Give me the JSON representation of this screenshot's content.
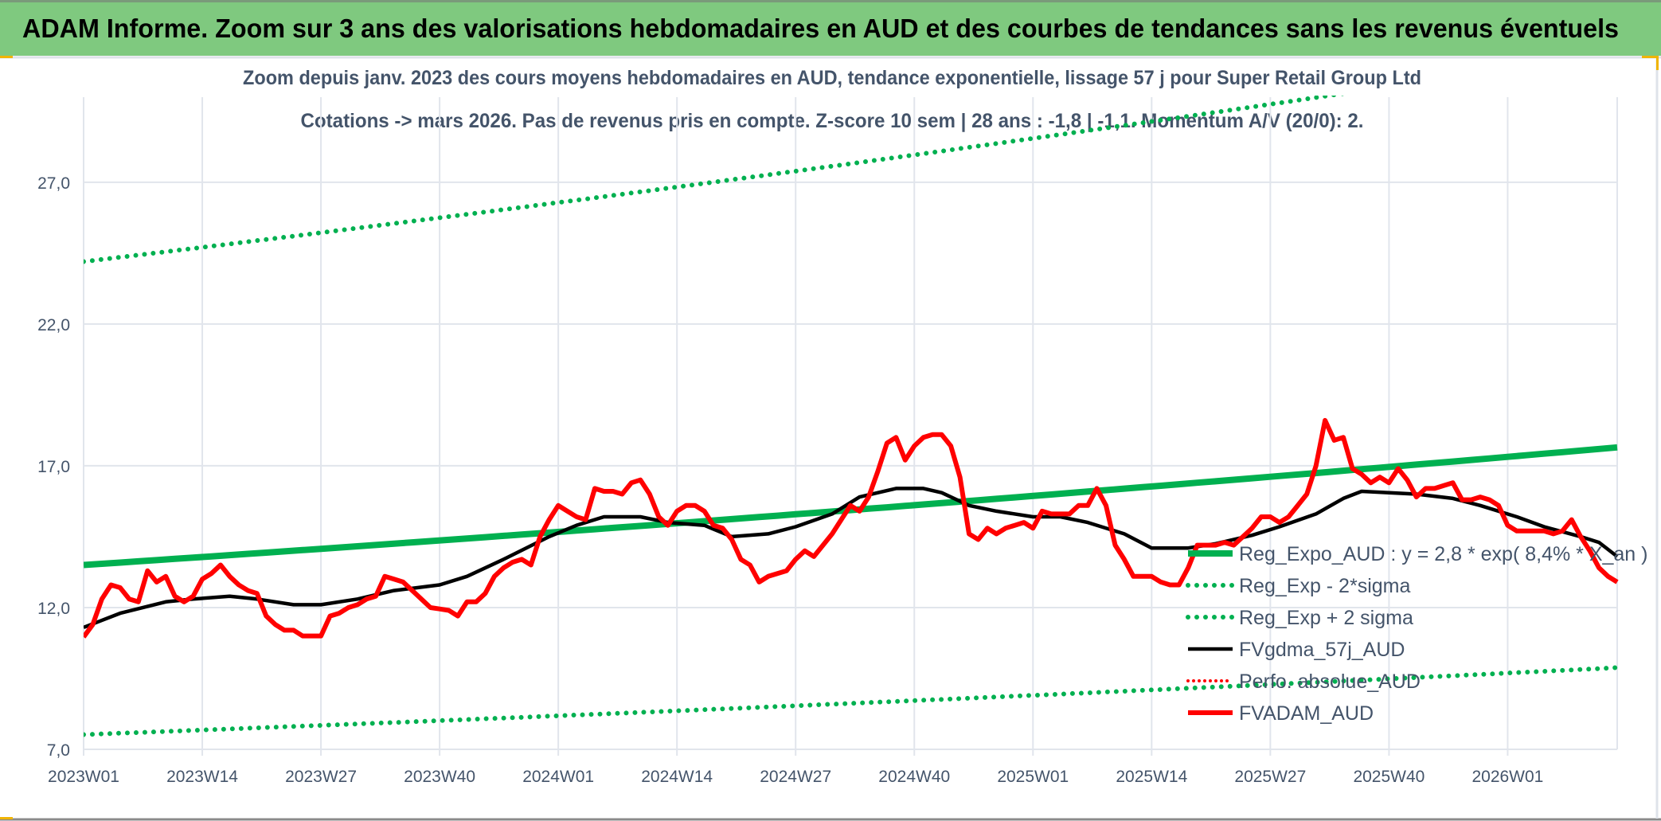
{
  "header": {
    "title": "ADAM Informe. Zoom sur 3 ans des valorisations hebdomadaires en AUD et des courbes de tendances sans les revenus éventuels"
  },
  "colors": {
    "header_bg": "#7fc97f",
    "trend": "#00b050",
    "band": "#00b050",
    "moving_average": "#000000",
    "price": "#ff0000",
    "perfo": "#ff0000",
    "text": "#44546a",
    "grid": "#e1e5ec"
  },
  "chart_data": {
    "type": "line",
    "title": "Zoom depuis janv. 2023 des cours moyens hebdomadaires en AUD, tendance exponentielle, lissage 57 j pour Super Retail Group Ltd",
    "subtitle": "Cotations -> mars 2026. Pas de revenus pris en compte. Z-score 10 sem | 28 ans : -1,8 | -1,1. Momentum A/V (20/0): 2.",
    "xlabel": "",
    "ylabel": "",
    "x_range": [
      "2023W01",
      "2026W13"
    ],
    "x_tick_labels": [
      "2023W01",
      "2023W14",
      "2023W27",
      "2023W40",
      "2024W01",
      "2024W14",
      "2024W27",
      "2024W40",
      "2025W01",
      "2025W14",
      "2025W27",
      "2025W40",
      "2026W01"
    ],
    "ylim": [
      7,
      30
    ],
    "y_tick_labels": [
      "7,0",
      "12,0",
      "17,0",
      "22,0",
      "27,0"
    ],
    "y_ticks": [
      7,
      12,
      17,
      22,
      27
    ],
    "grid": true,
    "legend_position": "bottom-right",
    "series": [
      {
        "name": "Reg_Expo_AUD : y = 2,8 * exp( 8,4% *  X_an )",
        "style": "solid-thick",
        "kind": "exponential",
        "start": [
          "2023W01",
          13.5
        ],
        "end": [
          "2026W13",
          17.65
        ]
      },
      {
        "name": "Reg_Exp - 2*sigma",
        "style": "dotted",
        "kind": "exponential",
        "start": [
          "2023W01",
          7.52
        ],
        "end": [
          "2026W13",
          9.88
        ]
      },
      {
        "name": "Reg_Exp + 2 sigma",
        "style": "dotted",
        "kind": "exponential",
        "start": [
          "2023W01",
          24.2
        ],
        "end": [
          "2026W13",
          31.6
        ]
      },
      {
        "name": "FVgdma_57j_AUD",
        "style": "solid",
        "kind": "points",
        "points": [
          [
            "2023W01",
            11.3
          ],
          [
            "2023W05",
            11.8
          ],
          [
            "2023W10",
            12.2
          ],
          [
            "2023W13",
            12.3
          ],
          [
            "2023W17",
            12.4
          ],
          [
            "2023W20",
            12.3
          ],
          [
            "2023W24",
            12.1
          ],
          [
            "2023W27",
            12.1
          ],
          [
            "2023W31",
            12.3
          ],
          [
            "2023W35",
            12.6
          ],
          [
            "2023W40",
            12.8
          ],
          [
            "2023W43",
            13.1
          ],
          [
            "2023W47",
            13.7
          ],
          [
            "2023W52",
            14.5
          ],
          [
            "2024W03",
            14.9
          ],
          [
            "2024W06",
            15.2
          ],
          [
            "2024W10",
            15.2
          ],
          [
            "2024W13",
            15.0
          ],
          [
            "2024W17",
            14.9
          ],
          [
            "2024W20",
            14.5
          ],
          [
            "2024W24",
            14.6
          ],
          [
            "2024W27",
            14.85
          ],
          [
            "2024W31",
            15.3
          ],
          [
            "2024W34",
            15.9
          ],
          [
            "2024W38",
            16.2
          ],
          [
            "2024W41",
            16.2
          ],
          [
            "2024W43",
            16.05
          ],
          [
            "2024W46",
            15.6
          ],
          [
            "2024W49",
            15.4
          ],
          [
            "2025W01",
            15.2
          ],
          [
            "2025W04",
            15.2
          ],
          [
            "2025W07",
            15.0
          ],
          [
            "2025W11",
            14.6
          ],
          [
            "2025W14",
            14.1
          ],
          [
            "2025W18",
            14.1
          ],
          [
            "2025W21",
            14.25
          ],
          [
            "2025W25",
            14.55
          ],
          [
            "2025W28",
            14.85
          ],
          [
            "2025W32",
            15.3
          ],
          [
            "2025W35",
            15.85
          ],
          [
            "2025W37",
            16.1
          ],
          [
            "2025W40",
            16.05
          ],
          [
            "2025W43",
            16.0
          ],
          [
            "2025W47",
            15.85
          ],
          [
            "2025W50",
            15.6
          ],
          [
            "2026W02",
            15.2
          ],
          [
            "2026W05",
            14.85
          ],
          [
            "2026W09",
            14.5
          ],
          [
            "2026W11",
            14.3
          ],
          [
            "2026W13",
            13.8
          ]
        ]
      },
      {
        "name": "Perfo. absolue_AUD",
        "style": "dotted-red",
        "kind": "legend-only"
      },
      {
        "name": "FVADAM_AUD",
        "style": "solid-thick",
        "kind": "weekly",
        "start": "2023W01",
        "values": [
          10.96,
          11.4,
          12.3,
          12.8,
          12.7,
          12.3,
          12.2,
          13.3,
          12.9,
          13.1,
          12.4,
          12.2,
          12.4,
          13.0,
          13.2,
          13.5,
          13.1,
          12.8,
          12.6,
          12.5,
          11.7,
          11.4,
          11.2,
          11.2,
          11.0,
          11.0,
          11.0,
          11.7,
          11.8,
          12.0,
          12.1,
          12.3,
          12.4,
          13.1,
          13.0,
          12.9,
          12.6,
          12.3,
          12.0,
          11.95,
          11.9,
          11.7,
          12.2,
          12.2,
          12.5,
          13.1,
          13.4,
          13.6,
          13.7,
          13.5,
          14.5,
          15.1,
          15.6,
          15.4,
          15.2,
          15.1,
          16.2,
          16.1,
          16.1,
          16.0,
          16.4,
          16.5,
          16.0,
          15.2,
          14.9,
          15.4,
          15.6,
          15.6,
          15.4,
          14.9,
          14.8,
          14.4,
          13.7,
          13.5,
          12.9,
          13.1,
          13.2,
          13.3,
          13.7,
          14.0,
          13.8,
          14.2,
          14.6,
          15.1,
          15.6,
          15.4,
          15.9,
          16.8,
          17.8,
          18.0,
          17.2,
          17.7,
          18.0,
          18.1,
          18.1,
          17.7,
          16.6,
          14.6,
          14.4,
          14.8,
          14.6,
          14.8,
          14.9,
          15.0,
          14.8,
          15.4,
          15.3,
          15.3,
          15.3,
          15.6,
          15.6,
          16.2,
          15.6,
          14.2,
          13.7,
          13.1,
          13.1,
          13.1,
          12.9,
          12.8,
          12.8,
          13.4,
          14.2,
          14.2,
          14.2,
          14.3,
          14.2,
          14.5,
          14.8,
          15.2,
          15.2,
          15.0,
          15.2,
          15.6,
          16.0,
          17.0,
          18.6,
          17.9,
          18.0,
          16.9,
          16.7,
          16.4,
          16.6,
          16.4,
          16.9,
          16.5,
          15.9,
          16.2,
          16.2,
          16.3,
          16.4,
          15.8,
          15.8,
          15.9,
          15.8,
          15.6,
          14.9,
          14.7,
          14.7,
          14.7,
          14.7,
          14.6,
          14.7,
          15.1,
          14.5,
          14.0,
          13.4,
          13.1,
          12.9
        ]
      }
    ]
  }
}
